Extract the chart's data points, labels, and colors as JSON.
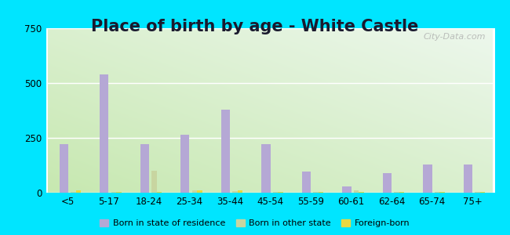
{
  "title": "Place of birth by age - White Castle",
  "categories": [
    "<5",
    "5-17",
    "18-24",
    "25-34",
    "35-44",
    "45-54",
    "55-59",
    "60-61",
    "62-64",
    "65-74",
    "75+"
  ],
  "born_in_state": [
    220,
    540,
    220,
    265,
    380,
    220,
    95,
    30,
    90,
    130,
    130
  ],
  "born_other_state": [
    5,
    5,
    100,
    12,
    8,
    5,
    5,
    12,
    5,
    5,
    5
  ],
  "foreign_born": [
    10,
    5,
    5,
    10,
    10,
    5,
    5,
    5,
    5,
    5,
    5
  ],
  "bar_color_state": "#b5a8d5",
  "bar_color_other": "#c8d5a0",
  "bar_color_foreign": "#e8d840",
  "ylim": [
    0,
    750
  ],
  "yticks": [
    0,
    250,
    500,
    750
  ],
  "outer_bg": "#00e5ff",
  "title_fontsize": 15,
  "watermark": "City-Data.com",
  "legend_labels": [
    "Born in state of residence",
    "Born in other state",
    "Foreign-born"
  ]
}
